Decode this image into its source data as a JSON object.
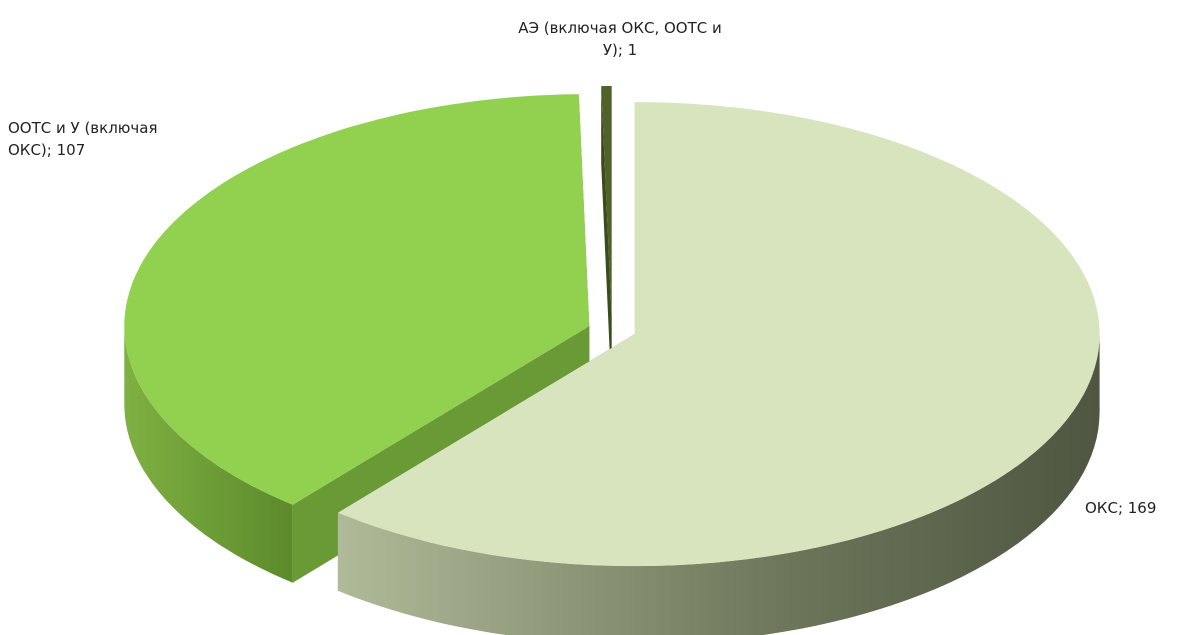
{
  "chart_data": {
    "type": "pie3d",
    "categories": [
      "ОКС",
      "ООТС и У (включая ОКС)",
      "АЭ (включая ОКС, ООТС и У)"
    ],
    "values": [
      169,
      107,
      1
    ],
    "value_labels": [
      "; 169",
      "; 107",
      "; 1"
    ],
    "colors": [
      "#d7e4bd",
      "#92d050",
      "#4f6228"
    ],
    "side_colors": [
      "#7d8566",
      "#6a9a35",
      "#3c4b1e"
    ]
  }
}
